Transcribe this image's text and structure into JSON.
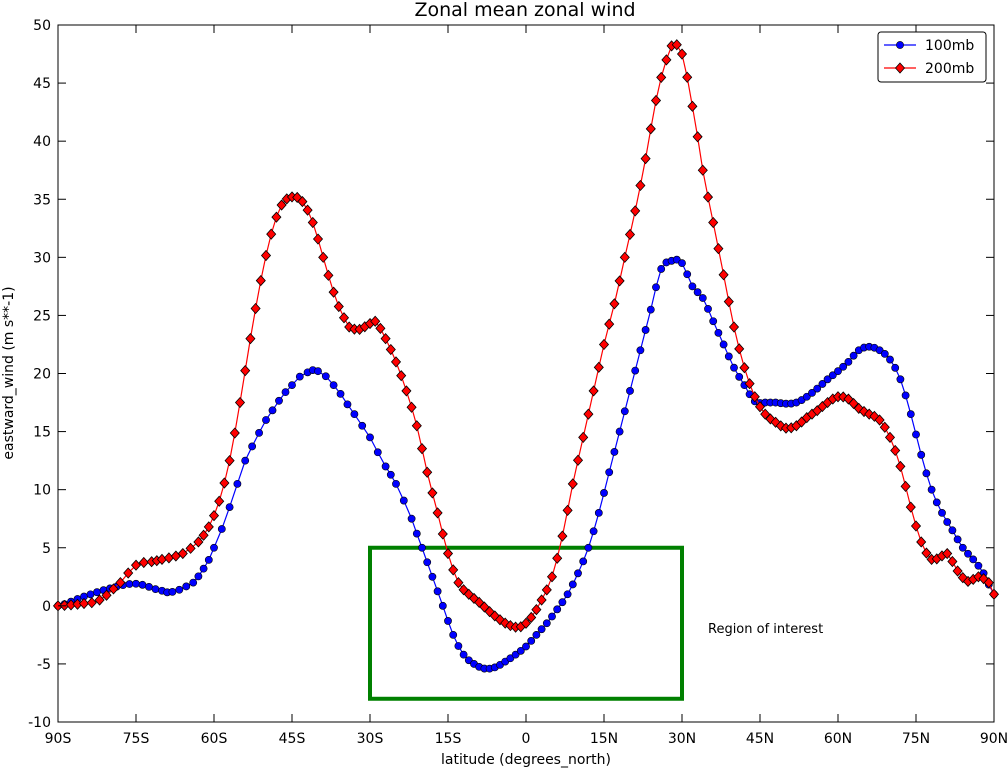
{
  "chart_data": {
    "type": "line",
    "title": "Zonal mean zonal wind",
    "xlabel": "latitude (degrees_north)",
    "ylabel": "eastward_wind (m s**-1)",
    "xlim": [
      -90,
      90
    ],
    "ylim": [
      -10,
      50
    ],
    "grid": false,
    "legend_position": "top-right",
    "x_ticks": [
      {
        "value": -90,
        "label": "90S"
      },
      {
        "value": -75,
        "label": "75S"
      },
      {
        "value": -60,
        "label": "60S"
      },
      {
        "value": -45,
        "label": "45S"
      },
      {
        "value": -30,
        "label": "30S"
      },
      {
        "value": -15,
        "label": "15S"
      },
      {
        "value": 0,
        "label": "0"
      },
      {
        "value": 15,
        "label": "15N"
      },
      {
        "value": 30,
        "label": "30N"
      },
      {
        "value": 45,
        "label": "45N"
      },
      {
        "value": 60,
        "label": "60N"
      },
      {
        "value": 75,
        "label": "75N"
      },
      {
        "value": 90,
        "label": "90N"
      }
    ],
    "y_ticks": [
      {
        "value": -10,
        "label": "-10"
      },
      {
        "value": -5,
        "label": "-5"
      },
      {
        "value": 0,
        "label": "0"
      },
      {
        "value": 5,
        "label": "5"
      },
      {
        "value": 10,
        "label": "10"
      },
      {
        "value": 15,
        "label": "15"
      },
      {
        "value": 20,
        "label": "20"
      },
      {
        "value": 25,
        "label": "25"
      },
      {
        "value": 30,
        "label": "30"
      },
      {
        "value": 35,
        "label": "35"
      },
      {
        "value": 40,
        "label": "40"
      },
      {
        "value": 45,
        "label": "45"
      },
      {
        "value": 50,
        "label": "50"
      }
    ],
    "series": [
      {
        "name": "100mb",
        "color": "#0000ff",
        "marker": "circle",
        "points": [
          [
            -90,
            0
          ],
          [
            -85,
            0.8
          ],
          [
            -80,
            1.5
          ],
          [
            -75,
            1.9
          ],
          [
            -70,
            1.3
          ],
          [
            -68,
            1.2
          ],
          [
            -64,
            2.0
          ],
          [
            -62,
            3.2
          ],
          [
            -60,
            5.0
          ],
          [
            -57,
            8.5
          ],
          [
            -54,
            12.5
          ],
          [
            -50,
            16.0
          ],
          [
            -45,
            19.0
          ],
          [
            -42,
            20.1
          ],
          [
            -40,
            20.2
          ],
          [
            -37,
            19.0
          ],
          [
            -33,
            16.5
          ],
          [
            -30,
            14.5
          ],
          [
            -27,
            12.0
          ],
          [
            -25,
            10.5
          ],
          [
            -22,
            7.5
          ],
          [
            -20,
            5.0
          ],
          [
            -18,
            2.5
          ],
          [
            -16,
            0
          ],
          [
            -14,
            -2.5
          ],
          [
            -12,
            -4.2
          ],
          [
            -10,
            -5.0
          ],
          [
            -8,
            -5.4
          ],
          [
            -6,
            -5.3
          ],
          [
            -4,
            -4.8
          ],
          [
            -2,
            -4.2
          ],
          [
            0,
            -3.5
          ],
          [
            2,
            -2.5
          ],
          [
            4,
            -1.5
          ],
          [
            6,
            -0.3
          ],
          [
            8,
            1.0
          ],
          [
            10,
            2.8
          ],
          [
            12,
            5.0
          ],
          [
            14,
            8.0
          ],
          [
            16,
            11.5
          ],
          [
            18,
            15.0
          ],
          [
            20,
            18.5
          ],
          [
            22,
            22.0
          ],
          [
            24,
            25.5
          ],
          [
            26,
            29.0
          ],
          [
            28,
            29.7
          ],
          [
            29,
            29.8
          ],
          [
            30,
            29.5
          ],
          [
            32,
            27.5
          ],
          [
            34,
            26.5
          ],
          [
            36,
            24.5
          ],
          [
            38,
            22.5
          ],
          [
            40,
            20.5
          ],
          [
            42,
            19.0
          ],
          [
            44,
            17.6
          ],
          [
            46,
            17.5
          ],
          [
            48,
            17.5
          ],
          [
            50,
            17.4
          ],
          [
            52,
            17.5
          ],
          [
            54,
            18.0
          ],
          [
            56,
            18.7
          ],
          [
            58,
            19.5
          ],
          [
            60,
            20.2
          ],
          [
            62,
            21.0
          ],
          [
            64,
            22.0
          ],
          [
            66,
            22.3
          ],
          [
            68,
            22.0
          ],
          [
            70,
            21.2
          ],
          [
            72,
            19.5
          ],
          [
            74,
            16.5
          ],
          [
            76,
            13.0
          ],
          [
            78,
            10.0
          ],
          [
            80,
            8.0
          ],
          [
            82,
            6.5
          ],
          [
            84,
            5.0
          ],
          [
            86,
            4.0
          ],
          [
            88,
            2.8
          ],
          [
            90,
            1.0
          ]
        ]
      },
      {
        "name": "200mb",
        "color": "#ff0000",
        "marker": "diamond",
        "points": [
          [
            -90,
            0
          ],
          [
            -85,
            0.2
          ],
          [
            -82,
            0.5
          ],
          [
            -78,
            2.0
          ],
          [
            -75,
            3.5
          ],
          [
            -72,
            3.8
          ],
          [
            -70,
            4.0
          ],
          [
            -66,
            4.5
          ],
          [
            -63,
            5.5
          ],
          [
            -61,
            6.8
          ],
          [
            -59,
            9.0
          ],
          [
            -57,
            12.5
          ],
          [
            -55,
            17.5
          ],
          [
            -53,
            23.0
          ],
          [
            -51,
            28.0
          ],
          [
            -49,
            32.0
          ],
          [
            -47,
            34.5
          ],
          [
            -45,
            35.2
          ],
          [
            -43,
            34.8
          ],
          [
            -41,
            33.0
          ],
          [
            -39,
            30.0
          ],
          [
            -37,
            27.0
          ],
          [
            -35,
            24.8
          ],
          [
            -34,
            24.0
          ],
          [
            -32,
            23.8
          ],
          [
            -30,
            24.3
          ],
          [
            -29,
            24.5
          ],
          [
            -27,
            23.0
          ],
          [
            -25,
            21.0
          ],
          [
            -23,
            18.5
          ],
          [
            -21,
            15.5
          ],
          [
            -19,
            11.5
          ],
          [
            -17,
            8.0
          ],
          [
            -15,
            4.5
          ],
          [
            -13,
            2.0
          ],
          [
            -11,
            1.0
          ],
          [
            -9,
            0.3
          ],
          [
            -7,
            -0.5
          ],
          [
            -5,
            -1.2
          ],
          [
            -3,
            -1.7
          ],
          [
            -1,
            -1.8
          ],
          [
            1,
            -1.0
          ],
          [
            3,
            0.5
          ],
          [
            5,
            2.5
          ],
          [
            7,
            6.0
          ],
          [
            9,
            10.5
          ],
          [
            11,
            14.5
          ],
          [
            13,
            18.5
          ],
          [
            15,
            22.5
          ],
          [
            17,
            26.0
          ],
          [
            19,
            30.0
          ],
          [
            21,
            34.0
          ],
          [
            23,
            38.5
          ],
          [
            25,
            43.5
          ],
          [
            27,
            47.0
          ],
          [
            28,
            48.2
          ],
          [
            29,
            48.3
          ],
          [
            30,
            47.5
          ],
          [
            31,
            45.5
          ],
          [
            32,
            43.0
          ],
          [
            34,
            37.5
          ],
          [
            36,
            33.0
          ],
          [
            38,
            28.5
          ],
          [
            40,
            24.0
          ],
          [
            42,
            20.5
          ],
          [
            44,
            18.0
          ],
          [
            46,
            16.5
          ],
          [
            48,
            15.8
          ],
          [
            50,
            15.3
          ],
          [
            52,
            15.5
          ],
          [
            54,
            16.2
          ],
          [
            56,
            16.8
          ],
          [
            58,
            17.5
          ],
          [
            60,
            18.0
          ],
          [
            62,
            17.8
          ],
          [
            64,
            17.0
          ],
          [
            66,
            16.5
          ],
          [
            68,
            16.0
          ],
          [
            70,
            14.5
          ],
          [
            72,
            12.0
          ],
          [
            74,
            8.5
          ],
          [
            76,
            5.5
          ],
          [
            78,
            4.0
          ],
          [
            80,
            4.3
          ],
          [
            81,
            4.5
          ],
          [
            83,
            3.0
          ],
          [
            85,
            2.1
          ],
          [
            87,
            2.5
          ],
          [
            89,
            2.0
          ],
          [
            90,
            1.0
          ]
        ]
      }
    ],
    "annotation": {
      "text": "Region of interest",
      "position": [
        35,
        -2
      ]
    },
    "region_box": {
      "x": [
        -30,
        30
      ],
      "y": [
        -8,
        5
      ],
      "color": "#008000"
    }
  }
}
